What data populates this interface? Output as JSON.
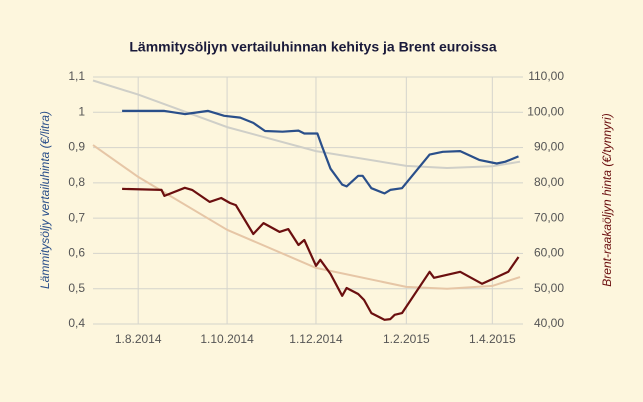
{
  "chart_data": {
    "type": "line",
    "title": "Lämmitysöljyn vertailuhinnan kehitys ja Brent euroissa",
    "y_label": "Lämmitysöljy vertailuhinta (€/litra)",
    "y2_label": "Brent-raakaöljyn hinta (€/tynnyri)",
    "xlim": [
      "2014-07-01",
      "2015-04-20"
    ],
    "xticks": [
      {
        "value": "2014-08-01",
        "label": "1.8.2014"
      },
      {
        "value": "2014-10-01",
        "label": "1.10.2014"
      },
      {
        "value": "2014-12-01",
        "label": "1.12.2014"
      },
      {
        "value": "2015-02-01",
        "label": "1.2.2015"
      },
      {
        "value": "2015-04-01",
        "label": "1.4.2015"
      }
    ],
    "ylim": [
      0.4,
      1.1
    ],
    "yticks": [
      {
        "value": 0.4,
        "label": "0,4"
      },
      {
        "value": 0.5,
        "label": "0,5"
      },
      {
        "value": 0.6,
        "label": "0,6"
      },
      {
        "value": 0.7,
        "label": "0,7"
      },
      {
        "value": 0.8,
        "label": "0,8"
      },
      {
        "value": 0.9,
        "label": "0,9"
      },
      1,
      {
        "value": 1.1,
        "label": "1,1"
      }
    ],
    "y2lim": [
      40,
      110
    ],
    "y2ticks": [
      {
        "value": 40,
        "label": "40,00"
      },
      {
        "value": 50,
        "label": "50,00"
      },
      {
        "value": 60,
        "label": "60,00"
      },
      {
        "value": 70,
        "label": "70,00"
      },
      {
        "value": 80,
        "label": "80,00"
      },
      {
        "value": 90,
        "label": "90,00"
      },
      {
        "value": 100,
        "label": "100,00"
      },
      {
        "value": 110,
        "label": "110,00"
      }
    ],
    "grid": true,
    "series": [
      {
        "color": "#cfcfc8",
        "axis": "y",
        "width": 2,
        "x": [
          "2014-07-01",
          "2014-08-01",
          "2014-10-01",
          "2014-12-01",
          "2015-02-01",
          "2015-03-01",
          "2015-04-01",
          "2015-04-20"
        ],
        "values": [
          1.09,
          1.05,
          0.958,
          0.89,
          0.848,
          0.842,
          0.847,
          0.86
        ]
      },
      {
        "color": "#e6c6a6",
        "axis": "y2",
        "width": 2,
        "x": [
          "2014-07-01",
          "2014-08-01",
          "2014-10-01",
          "2014-12-01",
          "2015-02-01",
          "2015-03-01",
          "2015-04-01",
          "2015-04-20"
        ],
        "values": [
          90.7,
          81.7,
          66.7,
          55.9,
          50.5,
          50,
          50.8,
          53.3
        ]
      },
      {
        "color": "#2a4f8a",
        "axis": "y",
        "width": 2.2,
        "x": [
          "2014-07-21",
          "2014-08-19",
          "2014-09-02",
          "2014-09-18",
          "2014-09-29",
          "2014-10-10",
          "2014-10-19",
          "2014-10-27",
          "2014-11-08",
          "2014-11-19",
          "2014-11-23",
          "2014-12-02",
          "2014-12-05",
          "2014-12-11",
          "2014-12-19",
          "2014-12-22",
          "2014-12-30",
          "2015-01-02",
          "2015-01-08",
          "2015-01-17",
          "2015-01-21",
          "2015-01-29",
          "2015-02-17",
          "2015-02-26",
          "2015-03-10",
          "2015-03-23",
          "2015-04-04",
          "2015-04-10",
          "2015-04-19"
        ],
        "values": [
          1.004,
          1.004,
          0.995,
          1.004,
          0.99,
          0.985,
          0.97,
          0.947,
          0.945,
          0.948,
          0.94,
          0.94,
          0.905,
          0.84,
          0.795,
          0.79,
          0.82,
          0.82,
          0.785,
          0.77,
          0.78,
          0.785,
          0.88,
          0.888,
          0.89,
          0.865,
          0.855,
          0.86,
          0.875
        ]
      },
      {
        "color": "#6b0f0f",
        "axis": "y2",
        "width": 2.2,
        "x": [
          "2014-07-21",
          "2014-08-17",
          "2014-08-19",
          "2014-09-02",
          "2014-09-07",
          "2014-09-19",
          "2014-09-27",
          "2014-10-03",
          "2014-10-07",
          "2014-10-19",
          "2014-10-26",
          "2014-11-06",
          "2014-11-12",
          "2014-11-19",
          "2014-11-23",
          "2014-12-01",
          "2014-12-04",
          "2014-12-11",
          "2014-12-19",
          "2014-12-22",
          "2014-12-30",
          "2015-01-03",
          "2015-01-08",
          "2015-01-17",
          "2015-01-21",
          "2015-01-24",
          "2015-01-29",
          "2015-02-17",
          "2015-02-20",
          "2015-03-10",
          "2015-03-25",
          "2015-04-04",
          "2015-04-12",
          "2015-04-19"
        ],
        "values": [
          78.3,
          78,
          76.3,
          78.6,
          78,
          74.6,
          75.7,
          74.3,
          73.7,
          65.5,
          68.6,
          66.1,
          66.9,
          62.4,
          63.8,
          56.5,
          58.2,
          54.2,
          48,
          50.2,
          48.5,
          46.8,
          43.1,
          41.2,
          41.4,
          42.6,
          43.1,
          54.8,
          53.1,
          54.8,
          51.4,
          53.3,
          54.8,
          59
        ]
      }
    ]
  }
}
